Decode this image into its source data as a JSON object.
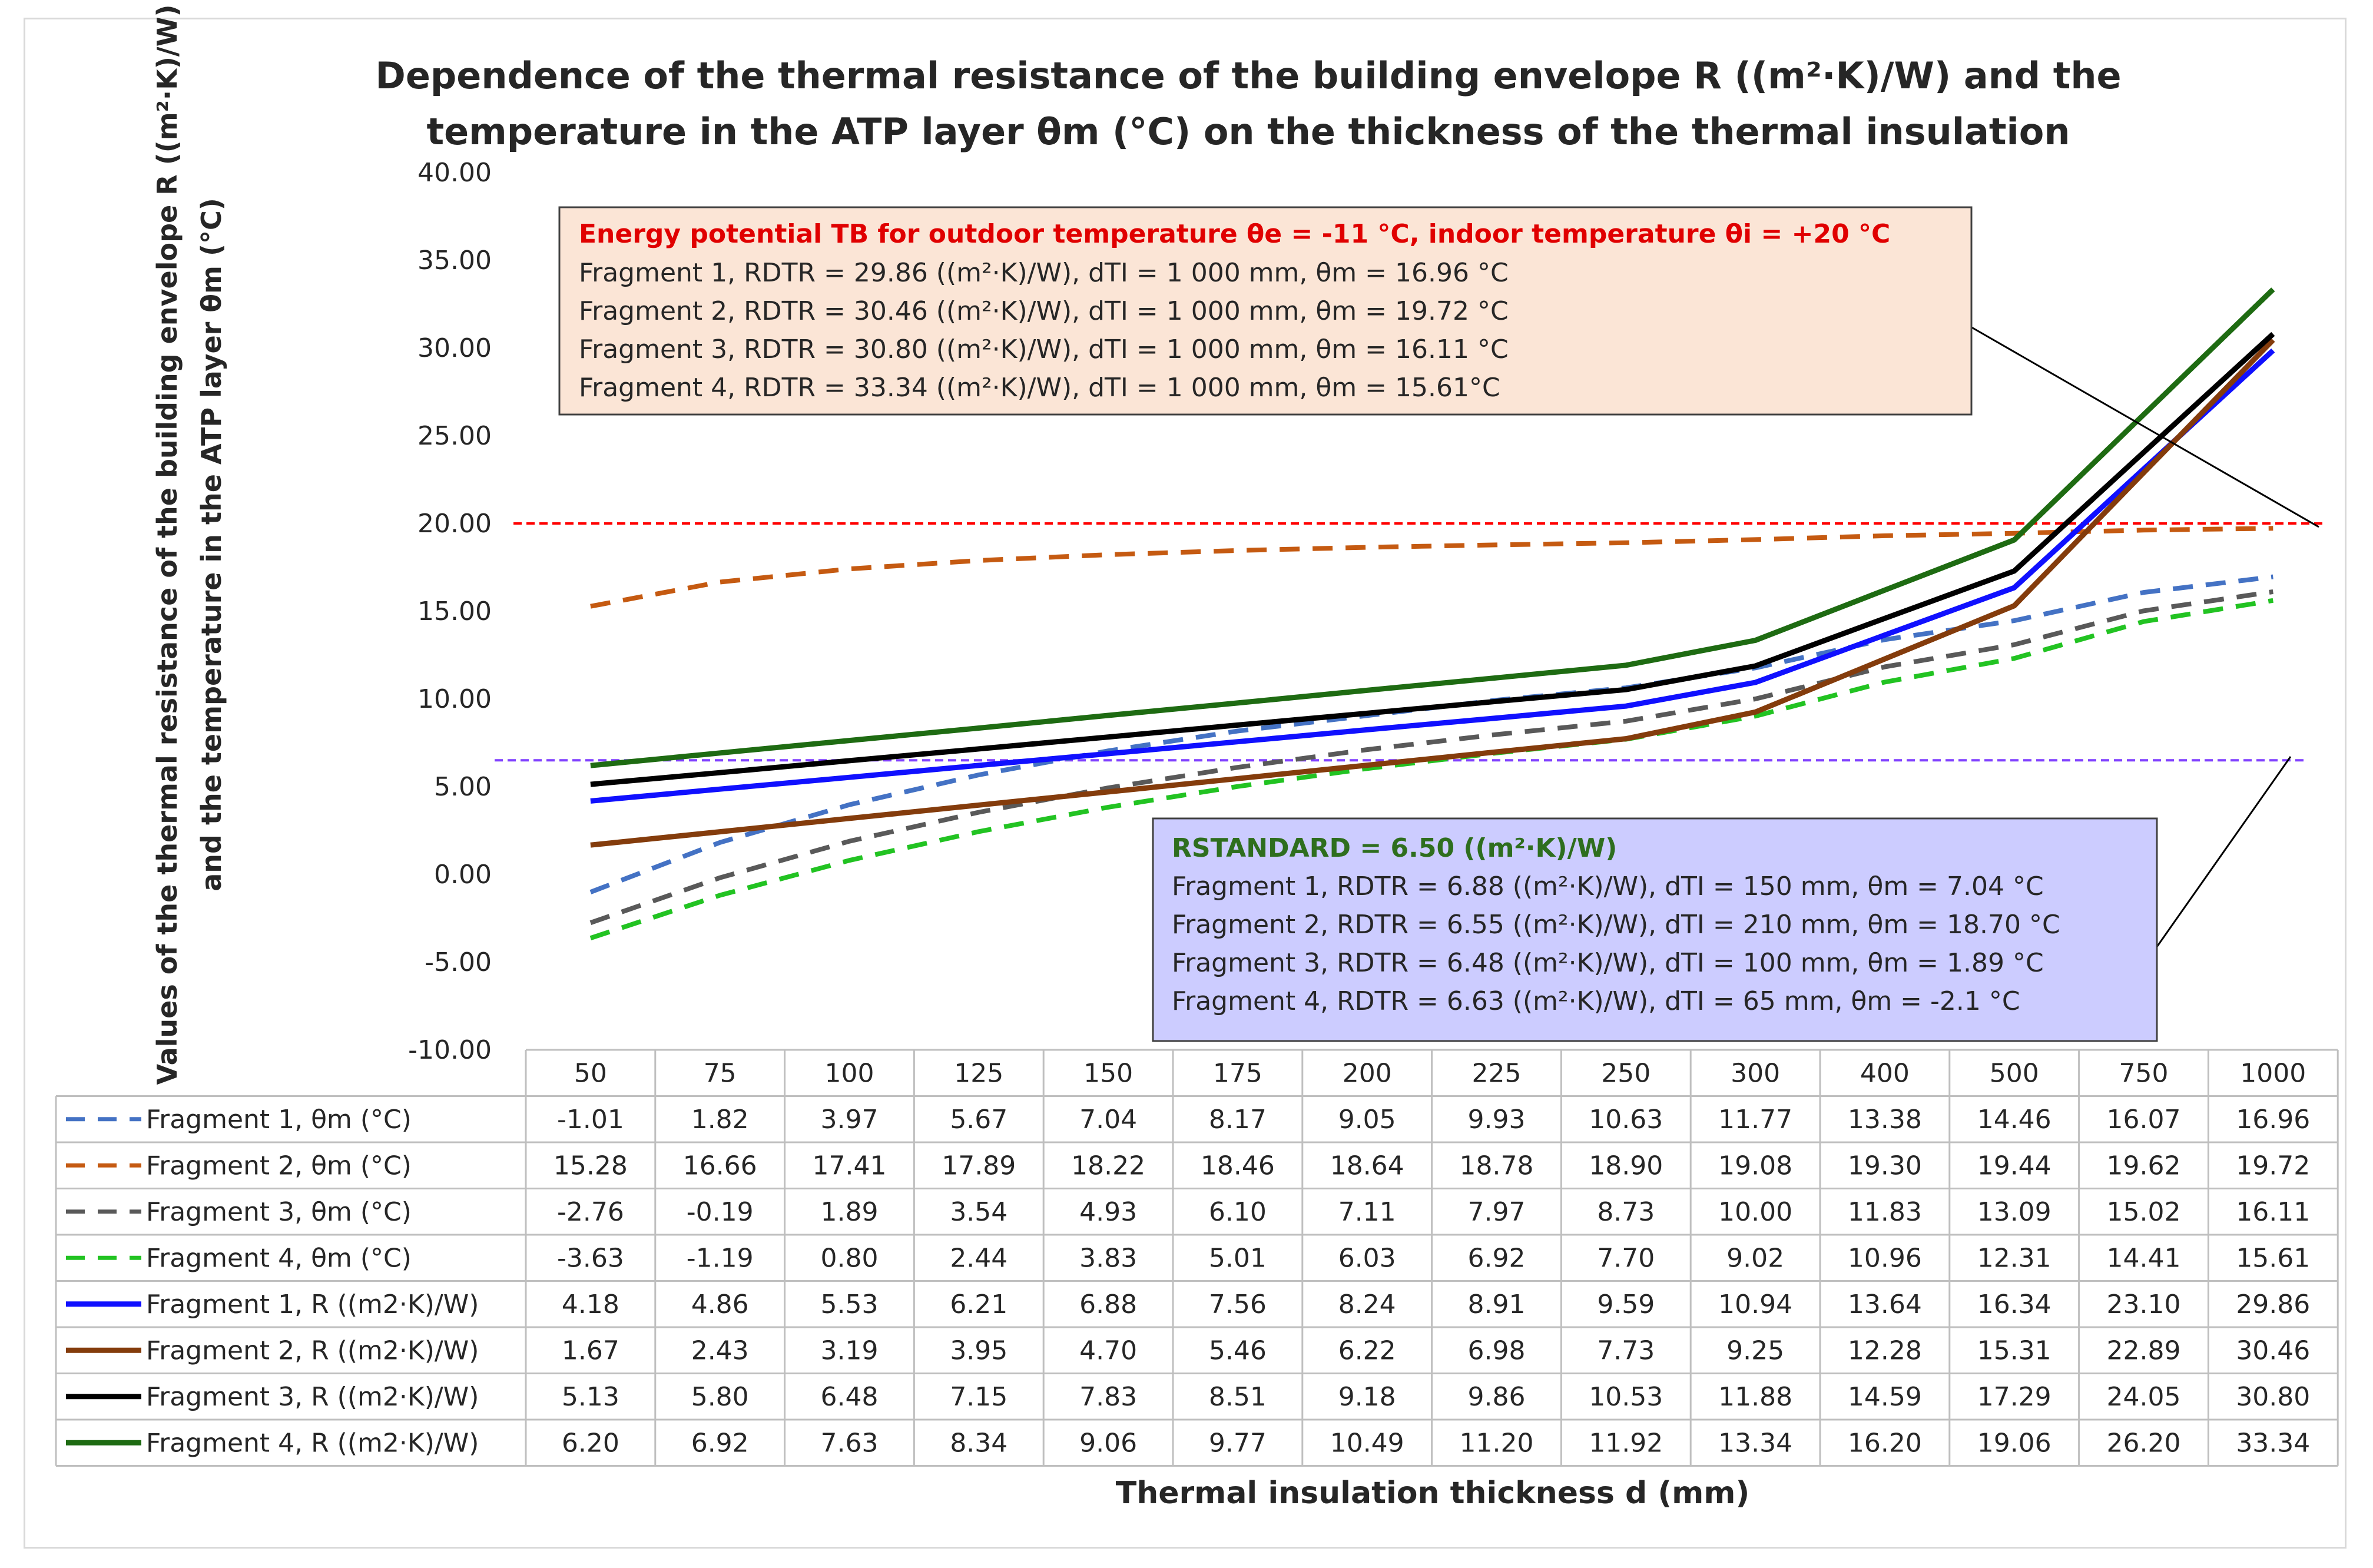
{
  "chart_data": {
    "type": "line",
    "title_line1": "Dependence of the thermal resistance of the building envelope R ((m²·K)/W) and the",
    "title_line2": "temperature in the ATP layer θm (°C) on the thickness of the thermal insulation",
    "ylabel_line1": "Values of the thermal resistance of the building envelope R ((m²·K)/W)",
    "ylabel_line2": "and the temperature in the ATP layer θm (°C)",
    "xlabel": "Thermal insulation thickness d (mm)",
    "ylim": [
      -10,
      40
    ],
    "yticks": [
      "40.00",
      "35.00",
      "30.00",
      "25.00",
      "20.00",
      "15.00",
      "10.00",
      "5.00",
      "0.00",
      "-5.00",
      "-10.00"
    ],
    "ytick_values": [
      40,
      35,
      30,
      25,
      20,
      15,
      10,
      5,
      0,
      -5,
      -10
    ],
    "categories": [
      "50",
      "75",
      "100",
      "125",
      "150",
      "175",
      "200",
      "225",
      "250",
      "300",
      "400",
      "500",
      "750",
      "1000"
    ],
    "series": [
      {
        "name": "Fragment 1, θm (°C)",
        "color": "#4472c4",
        "dash": true,
        "values": [
          -1.01,
          1.82,
          3.97,
          5.67,
          7.04,
          8.17,
          9.05,
          9.93,
          10.63,
          11.77,
          13.38,
          14.46,
          16.07,
          16.96
        ],
        "labels": [
          "-1.01",
          "1.82",
          "3.97",
          "5.67",
          "7.04",
          "8.17",
          "9.05",
          "9.93",
          "10.63",
          "11.77",
          "13.38",
          "14.46",
          "16.07",
          "16.96"
        ]
      },
      {
        "name": "Fragment 2, θm (°C)",
        "color": "#c55a11",
        "dash": true,
        "values": [
          15.28,
          16.66,
          17.41,
          17.89,
          18.22,
          18.46,
          18.64,
          18.78,
          18.9,
          19.08,
          19.3,
          19.44,
          19.62,
          19.72
        ],
        "labels": [
          "15.28",
          "16.66",
          "17.41",
          "17.89",
          "18.22",
          "18.46",
          "18.64",
          "18.78",
          "18.90",
          "19.08",
          "19.30",
          "19.44",
          "19.62",
          "19.72"
        ]
      },
      {
        "name": "Fragment 3, θm (°C)",
        "color": "#595959",
        "dash": true,
        "values": [
          -2.76,
          -0.19,
          1.89,
          3.54,
          4.93,
          6.1,
          7.11,
          7.97,
          8.73,
          10.0,
          11.83,
          13.09,
          15.02,
          16.11
        ],
        "labels": [
          "-2.76",
          "-0.19",
          "1.89",
          "3.54",
          "4.93",
          "6.10",
          "7.11",
          "7.97",
          "8.73",
          "10.00",
          "11.83",
          "13.09",
          "15.02",
          "16.11"
        ]
      },
      {
        "name": "Fragment 4, θm (°C)",
        "color": "#22c322",
        "dash": true,
        "values": [
          -3.63,
          -1.19,
          0.8,
          2.44,
          3.83,
          5.01,
          6.03,
          6.92,
          7.7,
          9.02,
          10.96,
          12.31,
          14.41,
          15.61
        ],
        "labels": [
          "-3.63",
          "-1.19",
          "0.80",
          "2.44",
          "3.83",
          "5.01",
          "6.03",
          "6.92",
          "7.70",
          "9.02",
          "10.96",
          "12.31",
          "14.41",
          "15.61"
        ]
      },
      {
        "name": "Fragment 1, R ((m2·K)/W)",
        "color": "#1010ff",
        "dash": false,
        "values": [
          4.18,
          4.86,
          5.53,
          6.21,
          6.88,
          7.56,
          8.24,
          8.91,
          9.59,
          10.94,
          13.64,
          16.34,
          23.1,
          29.86
        ],
        "labels": [
          "4.18",
          "4.86",
          "5.53",
          "6.21",
          "6.88",
          "7.56",
          "8.24",
          "8.91",
          "9.59",
          "10.94",
          "13.64",
          "16.34",
          "23.10",
          "29.86"
        ]
      },
      {
        "name": "Fragment 2, R ((m2·K)/W)",
        "color": "#843c0c",
        "dash": false,
        "values": [
          1.67,
          2.43,
          3.19,
          3.95,
          4.7,
          5.46,
          6.22,
          6.98,
          7.73,
          9.25,
          12.28,
          15.31,
          22.89,
          30.46
        ],
        "labels": [
          "1.67",
          "2.43",
          "3.19",
          "3.95",
          "4.70",
          "5.46",
          "6.22",
          "6.98",
          "7.73",
          "9.25",
          "12.28",
          "15.31",
          "22.89",
          "30.46"
        ]
      },
      {
        "name": "Fragment 3, R ((m2·K)/W)",
        "color": "#000000",
        "dash": false,
        "values": [
          5.13,
          5.8,
          6.48,
          7.15,
          7.83,
          8.51,
          9.18,
          9.86,
          10.53,
          11.88,
          14.59,
          17.29,
          24.05,
          30.8
        ],
        "labels": [
          "5.13",
          "5.80",
          "6.48",
          "7.15",
          "7.83",
          "8.51",
          "9.18",
          "9.86",
          "10.53",
          "11.88",
          "14.59",
          "17.29",
          "24.05",
          "30.80"
        ]
      },
      {
        "name": "Fragment 4, R ((m2·K)/W)",
        "color": "#1e6b12",
        "dash": false,
        "values": [
          6.2,
          6.92,
          7.63,
          8.34,
          9.06,
          9.77,
          10.49,
          11.2,
          11.92,
          13.34,
          16.2,
          19.06,
          26.2,
          33.34
        ],
        "labels": [
          "6.20",
          "6.92",
          "7.63",
          "8.34",
          "9.06",
          "9.77",
          "10.49",
          "11.20",
          "11.92",
          "13.34",
          "16.20",
          "19.06",
          "26.20",
          "33.34"
        ]
      }
    ],
    "reference_lines": [
      {
        "name": "indoor temperature 20 °C",
        "value": 20.0,
        "color": "#ff0000"
      },
      {
        "name": "R standard 6.50",
        "value": 6.5,
        "color": "#7f3fff"
      }
    ],
    "annotations": {
      "energy_box": {
        "fill": "#fbe5d6",
        "header": "Energy potential TB for outdoor temperature θe = -11 °C, indoor temperature θi = +20 °C",
        "lines": [
          "Fragment 1, RDTR = 29.86 ((m²·K)/W), dTI = 1 000 mm, θm = 16.96 °C",
          "Fragment 2, RDTR = 30.46 ((m²·K)/W), dTI = 1 000 mm, θm = 19.72 °C",
          "Fragment 3, RDTR = 30.80 ((m²·K)/W), dTI = 1 000 mm, θm = 16.11 °C",
          "Fragment 4, RDTR = 33.34 ((m²·K)/W), dTI = 1 000 mm, θm = 15.61°C"
        ]
      },
      "standard_box": {
        "fill": "#ccccff",
        "header": "RSTANDARD = 6.50 ((m²·K)/W)",
        "lines": [
          "Fragment 1, RDTR = 6.88 ((m²·K)/W), dTI = 150 mm, θm = 7.04 °C",
          "Fragment 2, RDTR = 6.55 ((m²·K)/W), dTI = 210 mm, θm = 18.70 °C",
          "Fragment 3, RDTR = 6.48 ((m²·K)/W), dTI = 100 mm, θm = 1.89 °C",
          "Fragment 4, RDTR = 6.63 ((m²·K)/W), dTI = 65 mm, θm = -2.1 °C"
        ]
      }
    },
    "legend_position": "table-below"
  }
}
